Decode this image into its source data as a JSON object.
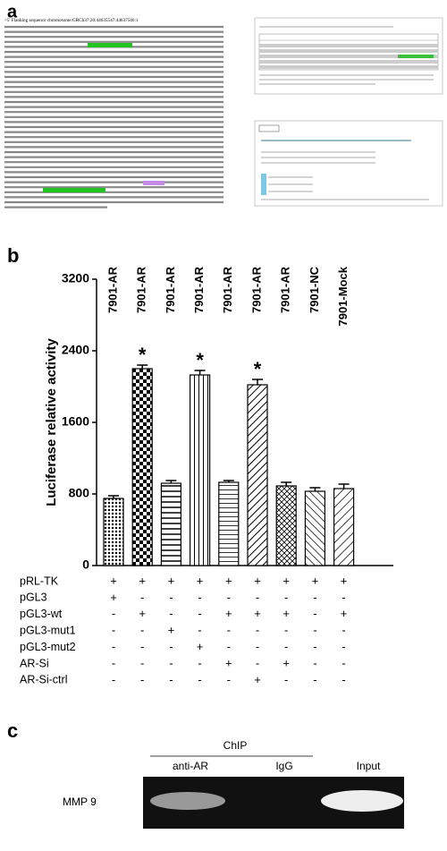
{
  "panel_labels": [
    "a",
    "b",
    "c"
  ],
  "sequence_header": ">5' Flanking sequence chromosome:GRCh37:20:44635547:44637546:1",
  "chart_data": {
    "type": "bar",
    "categories": [
      "7901-AR",
      "7901-AR",
      "7901-AR",
      "7901-AR",
      "7901-AR",
      "7901-AR",
      "7901-AR",
      "7901-NC",
      "7901-Mock"
    ],
    "values": [
      750,
      2200,
      920,
      2130,
      930,
      2020,
      890,
      830,
      860
    ],
    "errors": [
      30,
      40,
      30,
      50,
      20,
      60,
      40,
      40,
      50
    ],
    "ylim": [
      0,
      3200
    ],
    "yticks": [
      0,
      800,
      1600,
      2400,
      3200
    ],
    "ylabel": "Luciferase relative activity",
    "annotations": [
      {
        "category": 1,
        "text": "*"
      },
      {
        "category": 3,
        "text": "*"
      },
      {
        "category": 5,
        "text": "*"
      }
    ],
    "conditions": [
      {
        "name": "pRL-TK",
        "marks": [
          "+",
          "+",
          "+",
          "+",
          "+",
          "+",
          "+",
          "+",
          "+"
        ]
      },
      {
        "name": "pGL3",
        "marks": [
          "+",
          "-",
          "-",
          "-",
          "-",
          "-",
          "-",
          "-",
          "-"
        ]
      },
      {
        "name": "pGL3-wt",
        "marks": [
          "-",
          "+",
          "-",
          "-",
          "+",
          "+",
          "+",
          "-",
          "+"
        ]
      },
      {
        "name": "pGL3-mut1",
        "marks": [
          "-",
          "-",
          "+",
          "-",
          "-",
          "-",
          "-",
          "-",
          "-"
        ]
      },
      {
        "name": "pGL3-mut2",
        "marks": [
          "-",
          "-",
          "-",
          "+",
          "-",
          "-",
          "-",
          "-",
          "-"
        ]
      },
      {
        "name": "AR-Si",
        "marks": [
          "-",
          "-",
          "-",
          "-",
          "+",
          "-",
          "+",
          "-",
          "-"
        ]
      },
      {
        "name": "AR-Si-ctrl",
        "marks": [
          "-",
          "-",
          "-",
          "-",
          "-",
          "+",
          "-",
          "-",
          "-"
        ]
      }
    ]
  },
  "gel": {
    "title": "ChIP",
    "lanes": [
      "anti-AR",
      "IgG",
      "Input"
    ],
    "target": "MMP 9"
  }
}
